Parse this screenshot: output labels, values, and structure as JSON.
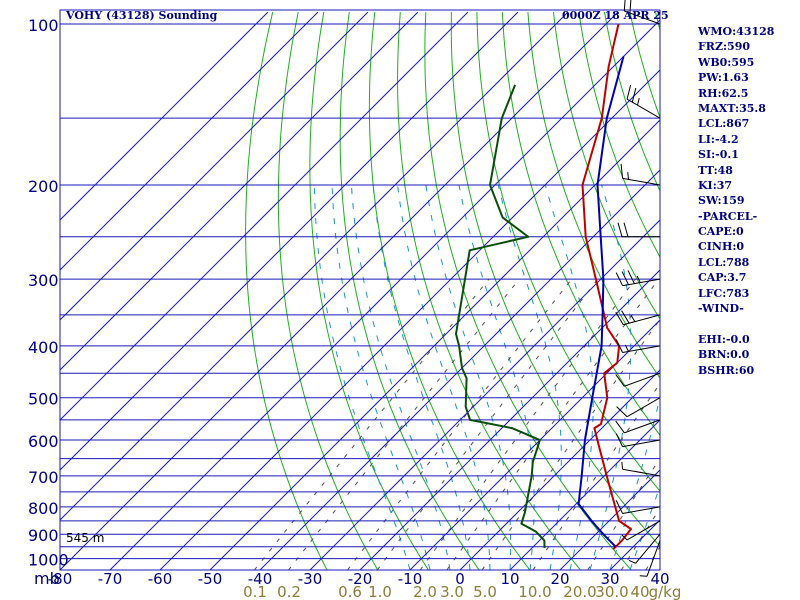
{
  "header": {
    "station": "VOHY (43128) Sounding",
    "time": "0000Z 18 APR 25"
  },
  "indices": [
    "WMO:43128",
    "FRZ:590",
    "WB0:595",
    "PW:1.63",
    "RH:62.5",
    "MAXT:35.8",
    "LCL:867",
    "LI:-4.2",
    "SI:-0.1",
    "TT:48",
    "KI:37",
    "SW:159",
    "-PARCEL-",
    "CAPE:0",
    "CINH:0",
    "LCL:788",
    "CAP:3.7",
    "LFC:783",
    "-WIND-",
    "",
    "EHI:-0.0",
    "BRN:0.0",
    "BSHR:60"
  ],
  "colors": {
    "isobar": "#1a1ab8",
    "isotherm": "#1a1ab8",
    "dry_adiabat": "#1fae1f",
    "moist_adiabat": "#1e90d8",
    "mixing_ratio": "#505050",
    "temperature": "#c00000",
    "dewpoint": "#0a4d0a",
    "parcel": "#0000b0",
    "text": "#000080",
    "mixing_label": "#8b7d3a"
  },
  "chart_data": {
    "type": "skew-t",
    "title": "VOHY (43128) Sounding",
    "y_unit": "mb",
    "pressure_levels": [
      100,
      200,
      300,
      400,
      500,
      600,
      700,
      800,
      900,
      1000
    ],
    "temperature_ticks": [
      -80,
      -70,
      -60,
      -50,
      -40,
      -30,
      -20,
      -10,
      0,
      10,
      20,
      30,
      40
    ],
    "temperature_tick_labels": [
      "-80",
      "-70",
      "-60",
      "-50",
      "-40",
      "-30",
      "-20",
      "-10",
      "0",
      "10",
      "20",
      "30",
      "40"
    ],
    "mixing_ratio_labels": [
      "0.1",
      "0.2",
      "0.6",
      "1.0",
      "2.0",
      "3.0",
      "5.0",
      "10.0",
      "20.0",
      "30.0",
      "40",
      "g/kg"
    ],
    "surface_height_label": "545 m",
    "series": [
      {
        "key": "temperature",
        "points": [
          [
            960,
            26.5
          ],
          [
            925,
            26.5
          ],
          [
            880,
            26.0
          ],
          [
            850,
            22.0
          ],
          [
            700,
            10.5
          ],
          [
            600,
            1.5
          ],
          [
            570,
            -1.5
          ],
          [
            560,
            -1.0
          ],
          [
            500,
            -5.0
          ],
          [
            450,
            -10.5
          ],
          [
            430,
            -10.0
          ],
          [
            400,
            -13.0
          ],
          [
            370,
            -19.0
          ],
          [
            300,
            -31.0
          ],
          [
            250,
            -41.5
          ],
          [
            200,
            -52.5
          ],
          [
            150,
            -62.0
          ],
          [
            120,
            -71.0
          ],
          [
            100,
            -77.5
          ]
        ]
      },
      {
        "key": "dewpoint",
        "points": [
          [
            955,
            12.5
          ],
          [
            925,
            11.0
          ],
          [
            890,
            7.5
          ],
          [
            860,
            3.0
          ],
          [
            820,
            1.5
          ],
          [
            700,
            -4.5
          ],
          [
            660,
            -7.0
          ],
          [
            600,
            -10.0
          ],
          [
            570,
            -18.0
          ],
          [
            550,
            -28.0
          ],
          [
            520,
            -31.5
          ],
          [
            460,
            -37.0
          ],
          [
            440,
            -40.0
          ],
          [
            400,
            -45.0
          ],
          [
            380,
            -48.0
          ],
          [
            265,
            -62.0
          ],
          [
            250,
            -53.0
          ],
          [
            230,
            -62.0
          ],
          [
            200,
            -71.0
          ],
          [
            150,
            -82.0
          ],
          [
            130,
            -86.0
          ]
        ]
      },
      {
        "key": "parcel",
        "points": [
          [
            950,
            26.5
          ],
          [
            900,
            21.5
          ],
          [
            850,
            16.5
          ],
          [
            790,
            10.5
          ],
          [
            700,
            5.5
          ],
          [
            600,
            -1.0
          ],
          [
            500,
            -8.0
          ],
          [
            400,
            -16.5
          ],
          [
            350,
            -22.5
          ],
          [
            300,
            -29.5
          ],
          [
            250,
            -38.5
          ],
          [
            200,
            -49.5
          ],
          [
            150,
            -61.0
          ],
          [
            115,
            -70.0
          ]
        ]
      }
    ],
    "wind_barbs": [
      {
        "p": 100,
        "dir": 290,
        "spd": 20
      },
      {
        "p": 150,
        "dir": 300,
        "spd": 25
      },
      {
        "p": 200,
        "dir": 280,
        "spd": 15
      },
      {
        "p": 250,
        "dir": 270,
        "spd": 20
      },
      {
        "p": 300,
        "dir": 260,
        "spd": 35
      },
      {
        "p": 350,
        "dir": 255,
        "spd": 25
      },
      {
        "p": 400,
        "dir": 260,
        "spd": 15
      },
      {
        "p": 450,
        "dir": 250,
        "spd": 10
      },
      {
        "p": 500,
        "dir": 240,
        "spd": 10
      },
      {
        "p": 550,
        "dir": 250,
        "spd": 10
      },
      {
        "p": 600,
        "dir": 260,
        "spd": 10
      },
      {
        "p": 700,
        "dir": 280,
        "spd": 5
      },
      {
        "p": 800,
        "dir": 260,
        "spd": 10
      },
      {
        "p": 850,
        "dir": 240,
        "spd": 5
      },
      {
        "p": 900,
        "dir": 220,
        "spd": 5
      },
      {
        "p": 925,
        "dir": 200,
        "spd": 5
      }
    ]
  }
}
